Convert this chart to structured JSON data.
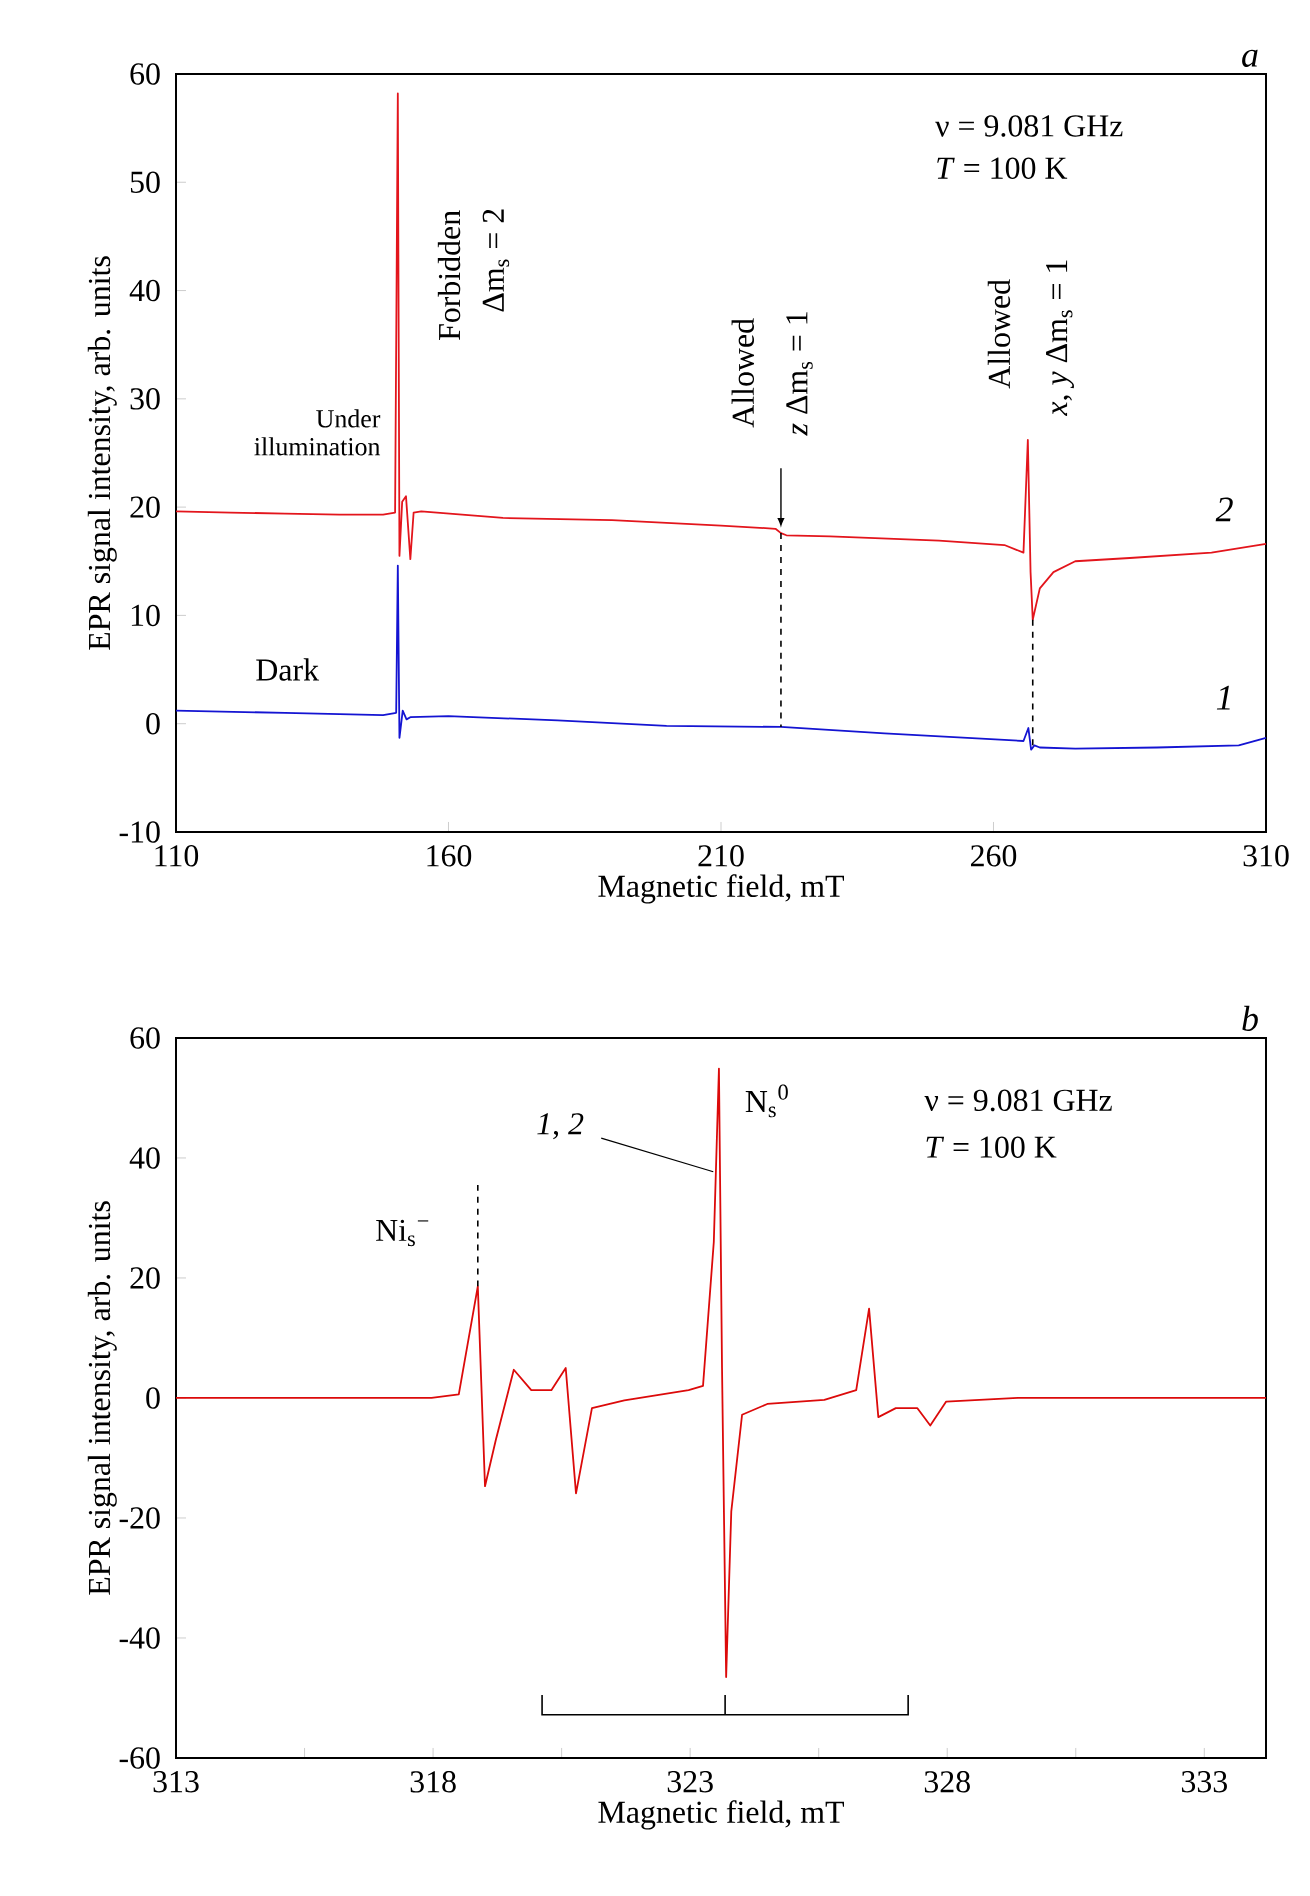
{
  "chart_data": [
    {
      "type": "line",
      "title": "a",
      "xlabel": "Magnetic field, mT",
      "ylabel": "EPR signal intensity, arb. units",
      "xlim": [
        110,
        310
      ],
      "ylim": [
        -10,
        60
      ],
      "xticks": [
        110,
        160,
        210,
        260,
        310
      ],
      "yticks": [
        -10,
        0,
        10,
        20,
        30,
        40,
        50,
        60
      ],
      "series": [
        {
          "name": "2",
          "color": "#e3151c",
          "x": [
            110,
            120,
            130,
            140,
            148,
            150.2,
            150.7,
            151.0,
            151.5,
            152.2,
            153.0,
            153.6,
            155,
            170,
            190,
            210,
            220,
            221,
            222,
            230,
            250,
            262,
            265.5,
            266.3,
            266.8,
            267.2,
            268.5,
            271,
            275,
            285,
            300,
            310
          ],
          "values": [
            19.6,
            19.5,
            19.4,
            19.3,
            19.3,
            19.5,
            58.2,
            15.5,
            20.5,
            21,
            15.2,
            19.5,
            19.6,
            19,
            18.8,
            18.3,
            18.0,
            17.6,
            17.4,
            17.3,
            16.9,
            16.5,
            15.8,
            26.2,
            14,
            9.6,
            12.5,
            14,
            15,
            15.3,
            15.8,
            16.6
          ]
        },
        {
          "name": "1",
          "color": "#1414d2",
          "x": [
            110,
            130,
            148,
            150.4,
            150.7,
            151.0,
            151.6,
            152.3,
            153,
            160,
            180,
            200,
            221,
            240,
            262,
            265.5,
            266.4,
            266.9,
            267.5,
            268.5,
            275,
            290,
            305,
            310
          ],
          "values": [
            1.2,
            1.0,
            0.8,
            1.0,
            14.6,
            -1.3,
            1.2,
            0.4,
            0.6,
            0.7,
            0.3,
            -0.2,
            -0.3,
            -0.9,
            -1.5,
            -1.6,
            -0.4,
            -2.4,
            -2.0,
            -2.2,
            -2.3,
            -2.2,
            -2.0,
            -1.3
          ]
        }
      ],
      "annotations": [
        "Under illumination",
        "Dark",
        "Forbidden",
        "Δm$_{s}$ = 2",
        "Allowed",
        {
          "text": "*z* Δm$_{s}$ = 1",
          "x": 221,
          "y": 17.6
        },
        "Allowed",
        "*x*, *y* Δm$_{s}$ = 1",
        "ν = 9.081 GHz",
        "*T* = 100 K"
      ]
    },
    {
      "type": "line",
      "title": "b",
      "xlabel": "Magnetic field, mT",
      "ylabel": "EPR signal intensity, arb. units",
      "xlim": [
        313,
        334.2
      ],
      "ylim": [
        -60,
        60
      ],
      "xticks": [
        313,
        {
          "value": 315.5,
          "label": null
        },
        318,
        {
          "value": 320.5,
          "label": null
        },
        323,
        {
          "value": 325.5,
          "label": null
        },
        328,
        {
          "value": 330.5,
          "label": null
        },
        333
      ],
      "yticks": [
        -60,
        -40,
        -20,
        0,
        20,
        40,
        60
      ],
      "series": [
        {
          "color": "#dc0a0a",
          "x": [
            313,
            317.97,
            318.5,
            318.87,
            319.01,
            319.22,
            319.57,
            319.91,
            320.3,
            320.58,
            320.78,
            321.09,
            321.72,
            322.97,
            323.25,
            323.46,
            323.56,
            323.62,
            323.7,
            323.8,
            324.01,
            324.5,
            325.61,
            326.23,
            326.48,
            326.66,
            327.0,
            327.42,
            327.67,
            327.98,
            329.37,
            334.2
          ],
          "values": [
            0,
            0,
            0.6,
            18.6,
            -14.7,
            -7,
            4.7,
            1.3,
            1.3,
            5,
            -15.9,
            -1.7,
            -0.4,
            1.3,
            2,
            26,
            54.9,
            5,
            -46.5,
            -18.9,
            -2.8,
            -1,
            -0.3,
            1.3,
            14.9,
            -3.2,
            -1.7,
            -1.7,
            -4.6,
            -0.6,
            0,
            0
          ]
        }
      ],
      "annotations": [
        {
          "text": "Ni$_{s}$$^{−}$",
          "x": 318.87,
          "y": 18.6
        },
        {
          "text": "*1*, *2*",
          "x": 323.45,
          "y": 37.7
        },
        {
          "text": "N$_{s}$$^{0}$",
          "x": 323.56,
          "y": 54.9
        },
        "ν = 9.081 GHz",
        "*T* = 100 K"
      ]
    }
  ]
}
